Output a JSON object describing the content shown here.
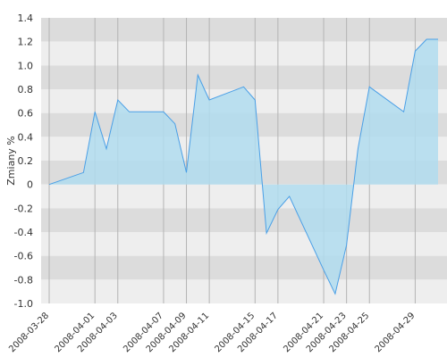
{
  "chart_data": {
    "type": "area",
    "title": "",
    "xlabel": "",
    "ylabel": "Zmiany %",
    "ylim": [
      -1.0,
      1.4
    ],
    "y_ticks": [
      "1.4",
      "1.2",
      "1.0",
      "0.8",
      "0.6",
      "0.4",
      "0.2",
      "0",
      "-0.2",
      "-0.4",
      "-0.6",
      "-0.8",
      "-1.0"
    ],
    "x_tick_labels": [
      "2008-03-28",
      "2008-04-01",
      "2008-04-03",
      "2008-04-07",
      "2008-04-09",
      "2008-04-11",
      "2008-04-15",
      "2008-04-17",
      "2008-04-21",
      "2008-04-23",
      "2008-04-25",
      "2008-04-29"
    ],
    "x": [
      "2008-03-28",
      "2008-03-31",
      "2008-04-01",
      "2008-04-02",
      "2008-04-03",
      "2008-04-04",
      "2008-04-07",
      "2008-04-08",
      "2008-04-09",
      "2008-04-10",
      "2008-04-11",
      "2008-04-14",
      "2008-04-15",
      "2008-04-16",
      "2008-04-17",
      "2008-04-18",
      "2008-04-21",
      "2008-04-22",
      "2008-04-23",
      "2008-04-24",
      "2008-04-25",
      "2008-04-28",
      "2008-04-29",
      "2008-04-30",
      "2008-05-01"
    ],
    "values": [
      0.0,
      0.1,
      0.61,
      0.3,
      0.71,
      0.61,
      0.61,
      0.51,
      0.1,
      0.92,
      0.71,
      0.82,
      0.71,
      -0.41,
      -0.21,
      -0.1,
      -0.72,
      -0.92,
      -0.51,
      0.3,
      0.82,
      0.61,
      1.12,
      1.22,
      1.22
    ],
    "grid": true,
    "legend": "none",
    "colors": {
      "band_dark": "#dcdcdc",
      "band_light": "#eeeeee",
      "vgrid": "#b4b4b4",
      "area_fill": "#b0dcee",
      "line": "#4a9fe6"
    }
  }
}
